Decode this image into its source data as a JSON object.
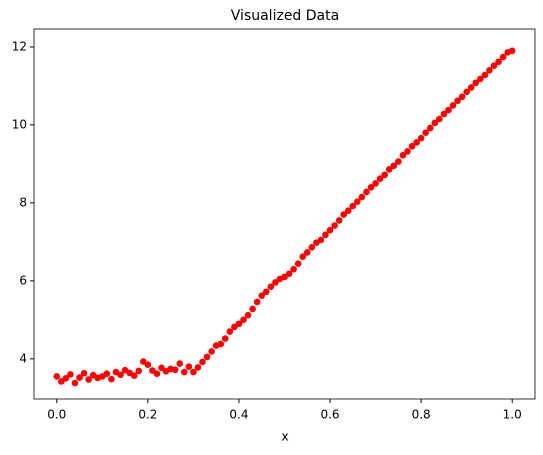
{
  "chart_data": {
    "type": "scatter",
    "title": "Visualized Data",
    "x_label": "x",
    "color": "#ff0000",
    "xlim": [
      -0.05,
      1.05
    ],
    "ylim": [
      2.97,
      12.46
    ],
    "xticks": [
      {
        "value": 0,
        "label": "0.0"
      },
      {
        "value": 0.2,
        "label": "0.2"
      },
      {
        "value": 0.4,
        "label": "0.4"
      },
      {
        "value": 0.6,
        "label": "0.6"
      },
      {
        "value": 0.8,
        "label": "0.8"
      },
      {
        "value": 1,
        "label": "1.0"
      }
    ],
    "yticks": [
      4,
      6,
      8,
      10,
      12
    ],
    "x": [
      0.0,
      0.01,
      0.02,
      0.03,
      0.04,
      0.05,
      0.06,
      0.07,
      0.08,
      0.09,
      0.1,
      0.11,
      0.12,
      0.13,
      0.14,
      0.15,
      0.16,
      0.17,
      0.18,
      0.19,
      0.2,
      0.21,
      0.22,
      0.23,
      0.24,
      0.25,
      0.26,
      0.27,
      0.28,
      0.29,
      0.3,
      0.31,
      0.32,
      0.33,
      0.34,
      0.35,
      0.36,
      0.37,
      0.38,
      0.39,
      0.4,
      0.41,
      0.42,
      0.43,
      0.44,
      0.45,
      0.46,
      0.47,
      0.48,
      0.49,
      0.5,
      0.51,
      0.52,
      0.53,
      0.54,
      0.55,
      0.56,
      0.57,
      0.58,
      0.59,
      0.6,
      0.61,
      0.62,
      0.63,
      0.64,
      0.65,
      0.66,
      0.67,
      0.68,
      0.69,
      0.7,
      0.71,
      0.72,
      0.73,
      0.74,
      0.75,
      0.76,
      0.77,
      0.78,
      0.79,
      0.8,
      0.81,
      0.82,
      0.83,
      0.84,
      0.85,
      0.86,
      0.87,
      0.88,
      0.89,
      0.9,
      0.91,
      0.92,
      0.93,
      0.94,
      0.95,
      0.96,
      0.97,
      0.98,
      0.99,
      1.0
    ],
    "values": [
      3.55,
      3.42,
      3.5,
      3.6,
      3.38,
      3.52,
      3.63,
      3.47,
      3.58,
      3.51,
      3.55,
      3.62,
      3.48,
      3.66,
      3.59,
      3.71,
      3.64,
      3.57,
      3.69,
      3.93,
      3.85,
      3.7,
      3.62,
      3.77,
      3.68,
      3.74,
      3.72,
      3.88,
      3.66,
      3.8,
      3.66,
      3.78,
      3.92,
      4.05,
      4.19,
      4.34,
      4.38,
      4.52,
      4.7,
      4.82,
      4.9,
      5.0,
      5.12,
      5.28,
      5.46,
      5.62,
      5.72,
      5.85,
      5.96,
      6.05,
      6.1,
      6.18,
      6.3,
      6.44,
      6.62,
      6.73,
      6.86,
      6.98,
      7.05,
      7.18,
      7.3,
      7.42,
      7.55,
      7.7,
      7.8,
      7.92,
      8.03,
      8.15,
      8.28,
      8.4,
      8.5,
      8.62,
      8.72,
      8.86,
      8.95,
      9.06,
      9.22,
      9.32,
      9.45,
      9.55,
      9.66,
      9.8,
      9.92,
      10.05,
      10.15,
      10.28,
      10.38,
      10.5,
      10.62,
      10.72,
      10.85,
      10.96,
      11.08,
      11.18,
      11.28,
      11.4,
      11.52,
      11.62,
      11.74,
      11.86,
      11.9
    ]
  }
}
